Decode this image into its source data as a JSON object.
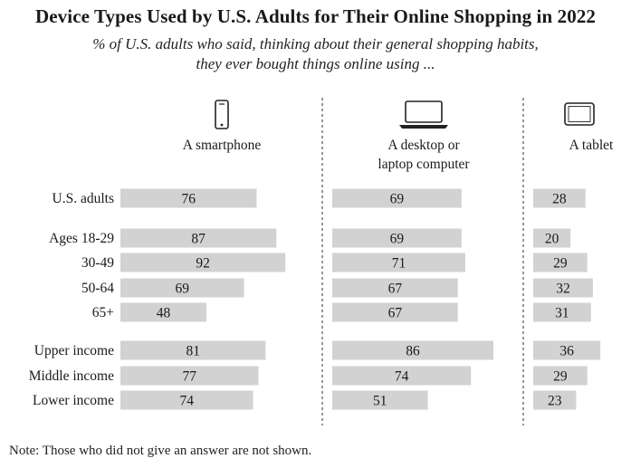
{
  "title": "Device Types Used by U.S. Adults for Their Online Shopping in 2022",
  "subtitle_line1": "% of U.S. adults who said, thinking about their general shopping habits,",
  "subtitle_line2": "they ever bought things online using ...",
  "note": "Note: Those who did not give an answer are not shown.",
  "colors": {
    "bar": "#d2d2d2",
    "divider": "#555555",
    "icon": "#222222"
  },
  "chart_data": {
    "type": "bar",
    "orientation": "horizontal",
    "title": "Device Types Used by U.S. Adults for Their Online Shopping in 2022",
    "categories": [
      "U.S. adults",
      "Ages 18-29",
      "30-49",
      "50-64",
      "65+",
      "Upper income",
      "Middle income",
      "Lower income"
    ],
    "series": [
      {
        "name": "A smartphone",
        "icon": "smartphone-icon",
        "values": [
          76,
          87,
          92,
          69,
          48,
          81,
          77,
          74
        ]
      },
      {
        "name": "A desktop or laptop computer",
        "name_lines": [
          "A desktop or",
          "laptop computer"
        ],
        "icon": "laptop-icon",
        "values": [
          69,
          69,
          71,
          67,
          67,
          86,
          74,
          51
        ]
      },
      {
        "name": "A tablet",
        "icon": "tablet-icon",
        "values": [
          28,
          20,
          29,
          32,
          31,
          36,
          29,
          23
        ]
      }
    ],
    "grid": false,
    "legend": "column headers"
  }
}
